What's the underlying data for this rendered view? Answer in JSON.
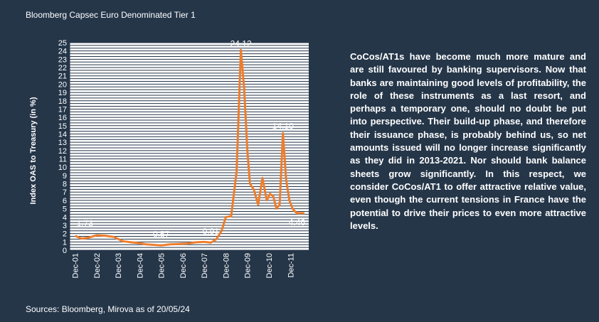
{
  "header": {
    "title": "Bloomberg Capsec Euro Denominated Tier 1"
  },
  "footer": {
    "source": "Sources: Bloomberg, Mirova as of 20/05/24"
  },
  "commentary": {
    "text": "CoCos/AT1s have become much more mature and are still favoured by banking supervisors. Now that banks are maintaining good levels of profitability, the role of these instruments as a last resort, and perhaps a temporary one, should no doubt be put into perspective. Their build-up phase, and therefore their issuance phase, is probably behind us, so net amounts issued will no longer increase significantly as they did in 2013-2021. Nor should bank balance sheets grow significantly. In this respect, we consider CoCos/AT1 to offer attractive relative value, even though the current tensions in France have the potential to drive their prices to even more attractive levels."
  },
  "colors": {
    "background": "#253649",
    "plot_background": "#ffffff",
    "grid": "#253649",
    "line": "#ef7d2b",
    "text": "#ffffff"
  },
  "chart_data": {
    "type": "line",
    "title": "",
    "xlabel": "",
    "ylabel": "Index OAS to Treasury (in %)",
    "ylim": [
      0,
      25
    ],
    "grid": true,
    "x_ticks": [
      "Dec-01",
      "Dec-02",
      "Dec-03",
      "Dec-04",
      "Dec-05",
      "Dec-06",
      "Dec-07",
      "Dec-08",
      "Dec-09",
      "Dec-10",
      "Dec-11"
    ],
    "y_ticks": [
      0,
      1,
      2,
      3,
      4,
      5,
      6,
      7,
      8,
      9,
      10,
      11,
      12,
      13,
      14,
      15,
      16,
      17,
      18,
      19,
      20,
      21,
      22,
      23,
      24,
      25
    ],
    "series": [
      {
        "x": [
          0,
          0.3,
          0.6,
          1.0,
          1.4,
          1.8,
          2.2,
          2.6,
          3.0,
          3.3,
          3.6,
          4.0,
          4.4,
          4.8,
          5.2,
          5.6,
          6.0,
          6.3,
          6.55,
          6.8,
          7.0,
          7.25,
          7.5,
          7.7,
          7.85,
          8.0,
          8.12,
          8.3,
          8.5,
          8.7,
          8.9,
          9.05,
          9.2,
          9.35,
          9.5,
          9.65,
          9.8,
          9.95,
          10.1,
          10.2,
          10.3,
          10.5,
          10.65
        ],
        "y": [
          1.73,
          1.4,
          1.5,
          1.8,
          1.75,
          1.6,
          1.1,
          0.95,
          0.85,
          0.7,
          0.65,
          0.57,
          0.7,
          0.75,
          0.8,
          0.95,
          1.0,
          0.91,
          1.3,
          2.3,
          4.0,
          4.1,
          9.5,
          24.12,
          19.5,
          12.0,
          8.0,
          7.3,
          5.5,
          8.7,
          6.0,
          6.8,
          6.5,
          5.0,
          5.5,
          14.1,
          8.5,
          6.0,
          5.0,
          4.7,
          4.46,
          4.46,
          4.46
        ]
      }
    ],
    "annotations": [
      {
        "text": "1.73",
        "x": 0.0,
        "y": 1.73
      },
      {
        "text": "0.57",
        "x": 4.0,
        "y": 0.57
      },
      {
        "text": "0.91",
        "x": 6.3,
        "y": 0.91
      },
      {
        "text": "24.12",
        "x": 7.7,
        "y": 24.12
      },
      {
        "text": "14.10",
        "x": 9.65,
        "y": 14.1
      },
      {
        "text": "4.46",
        "x": 10.5,
        "y": 4.46
      }
    ]
  }
}
